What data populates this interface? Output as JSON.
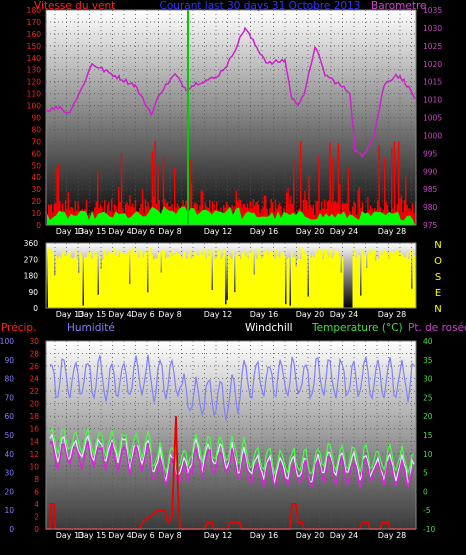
{
  "chart_data": [
    {
      "type": "line",
      "title": "Courant last 30 days 31 Octobre 2013",
      "left_axis_label": "Vitesse du vent",
      "right_axis_label": "Barometre",
      "left_ticks": [
        0,
        10,
        20,
        30,
        40,
        50,
        60,
        70,
        80,
        90,
        100,
        110,
        120,
        130,
        140,
        150,
        160,
        170,
        180
      ],
      "right_ticks": [
        975,
        980,
        985,
        990,
        995,
        1000,
        1005,
        1010,
        1015,
        1020,
        1025,
        1030,
        1035
      ],
      "ylim_left": [
        0,
        180
      ],
      "ylim_right": [
        975,
        1035
      ],
      "x_ticks": [
        "Day 13",
        "Day 15",
        "Day 4",
        "Day 6",
        "Day 8",
        "Day 12",
        "Day 16",
        "Day 20",
        "Day 24",
        "Day 28"
      ],
      "series": [
        {
          "name": "Vitesse du vent",
          "color": "#ff0000"
        },
        {
          "name": "Barometre",
          "color": "#cc22cc"
        }
      ],
      "marker_color": "#00cc00"
    },
    {
      "type": "area",
      "left_ticks": [
        0,
        90,
        180,
        270,
        360
      ],
      "ylim": [
        0,
        360
      ],
      "right_labels": [
        "N",
        "O",
        "S",
        "E",
        "N"
      ],
      "x_ticks": [
        "Day 13",
        "Day 15",
        "Day 4",
        "Day 6",
        "Day 8",
        "Day 12",
        "Day 16",
        "Day 20",
        "Day 24",
        "Day 28"
      ]
    },
    {
      "type": "line",
      "labels": {
        "precip": "Précip.",
        "humidity": "Humidité",
        "windchill": "Windchill",
        "temperature": "Temperature (°C)",
        "dewpoint": "Pt. de rosée"
      },
      "precip_ticks": [
        0,
        2,
        4,
        6,
        8,
        10,
        12,
        14,
        16,
        18,
        20,
        22,
        24,
        26,
        28,
        30
      ],
      "humidity_ticks": [
        0,
        10,
        20,
        30,
        40,
        50,
        60,
        70,
        80,
        90,
        100
      ],
      "temp_ticks": [
        -10,
        -5,
        0,
        5,
        10,
        15,
        20,
        25,
        30,
        35,
        40
      ],
      "ylim_temp": [
        -10,
        40
      ],
      "ylim_humidity": [
        0,
        100
      ],
      "ylim_precip": [
        0,
        30
      ],
      "x_ticks": [
        "Day 13",
        "Day 15",
        "Day 4",
        "Day 6",
        "Day 8",
        "Day 12",
        "Day 16",
        "Day 20",
        "Day 24",
        "Day 28"
      ]
    }
  ],
  "colors": {
    "wind": "#ff0000",
    "wind_avg": "#00ff00",
    "baro": "#cc22cc",
    "direction": "#ffff00",
    "humidity": "#8080ff",
    "temperature": "#44ff44",
    "dewpoint": "#dd22dd",
    "windchill": "#ffffff",
    "precip": "#ee0000",
    "title": "#3333ff",
    "axis_left": "#ff2222",
    "axis_right": "#cc44cc",
    "axis_humidity": "#8080ff",
    "axis_temp": "#44dd44"
  }
}
